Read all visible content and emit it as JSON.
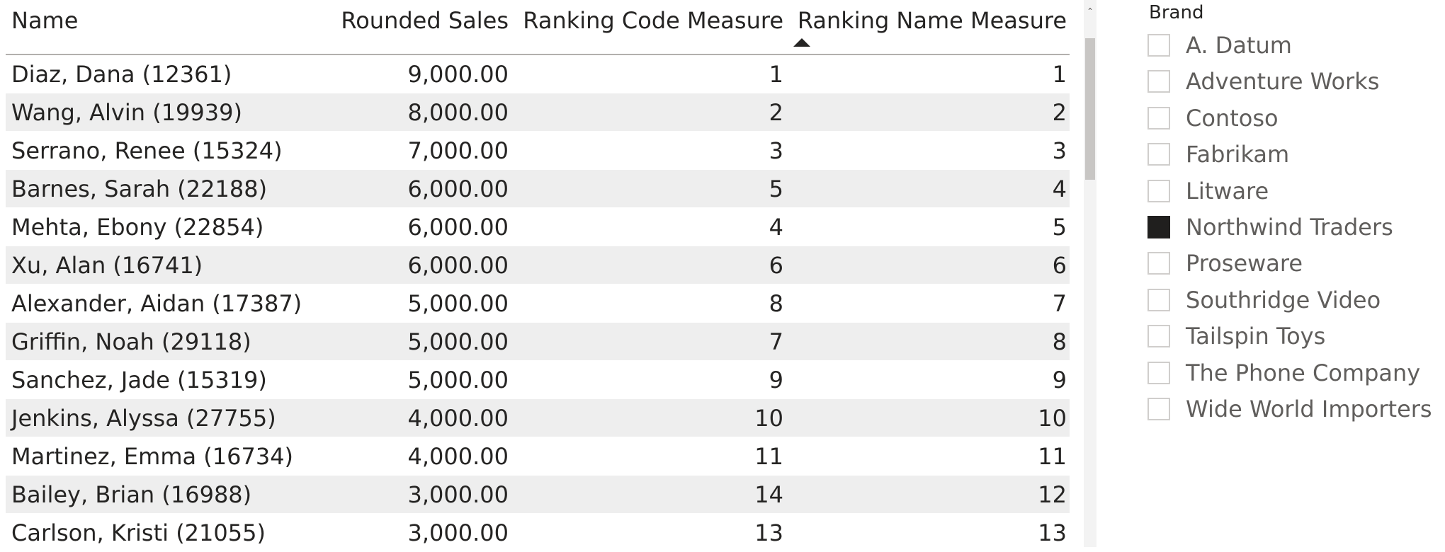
{
  "table": {
    "headers": {
      "name": "Name",
      "rounded_sales": "Rounded Sales",
      "ranking_code": "Ranking Code Measure",
      "ranking_name": "Ranking Name Measure"
    },
    "sorted_column": "Ranking Name Measure",
    "sort_direction": "ascending",
    "rows": [
      {
        "name": "Diaz, Dana (12361)",
        "sales": "9,000.00",
        "code": "1",
        "rank": "1"
      },
      {
        "name": "Wang, Alvin (19939)",
        "sales": "8,000.00",
        "code": "2",
        "rank": "2"
      },
      {
        "name": "Serrano, Renee (15324)",
        "sales": "7,000.00",
        "code": "3",
        "rank": "3"
      },
      {
        "name": "Barnes, Sarah (22188)",
        "sales": "6,000.00",
        "code": "5",
        "rank": "4"
      },
      {
        "name": "Mehta, Ebony (22854)",
        "sales": "6,000.00",
        "code": "4",
        "rank": "5"
      },
      {
        "name": "Xu, Alan (16741)",
        "sales": "6,000.00",
        "code": "6",
        "rank": "6"
      },
      {
        "name": "Alexander, Aidan (17387)",
        "sales": "5,000.00",
        "code": "8",
        "rank": "7"
      },
      {
        "name": "Griffin, Noah (29118)",
        "sales": "5,000.00",
        "code": "7",
        "rank": "8"
      },
      {
        "name": "Sanchez, Jade (15319)",
        "sales": "5,000.00",
        "code": "9",
        "rank": "9"
      },
      {
        "name": "Jenkins, Alyssa (27755)",
        "sales": "4,000.00",
        "code": "10",
        "rank": "10"
      },
      {
        "name": "Martinez, Emma (16734)",
        "sales": "4,000.00",
        "code": "11",
        "rank": "11"
      },
      {
        "name": "Bailey, Brian (16988)",
        "sales": "3,000.00",
        "code": "14",
        "rank": "12"
      },
      {
        "name": "Carlson, Kristi (21055)",
        "sales": "3,000.00",
        "code": "13",
        "rank": "13"
      }
    ]
  },
  "scrollbar": {
    "up_icon": "chevron-up-icon"
  },
  "slicer": {
    "title": "Brand",
    "items": [
      {
        "label": "A. Datum",
        "checked": false
      },
      {
        "label": "Adventure Works",
        "checked": false
      },
      {
        "label": "Contoso",
        "checked": false
      },
      {
        "label": "Fabrikam",
        "checked": false
      },
      {
        "label": "Litware",
        "checked": false
      },
      {
        "label": "Northwind Traders",
        "checked": true
      },
      {
        "label": "Proseware",
        "checked": false
      },
      {
        "label": "Southridge Video",
        "checked": false
      },
      {
        "label": "Tailspin Toys",
        "checked": false
      },
      {
        "label": "The Phone Company",
        "checked": false
      },
      {
        "label": "Wide World Importers",
        "checked": false
      }
    ]
  },
  "colors": {
    "alt_row": "#eeeeee",
    "header_border": "#b3b0ad",
    "text": "#252423",
    "slicer_text": "#605e5c",
    "checkbox_checked": "#201f1e"
  }
}
